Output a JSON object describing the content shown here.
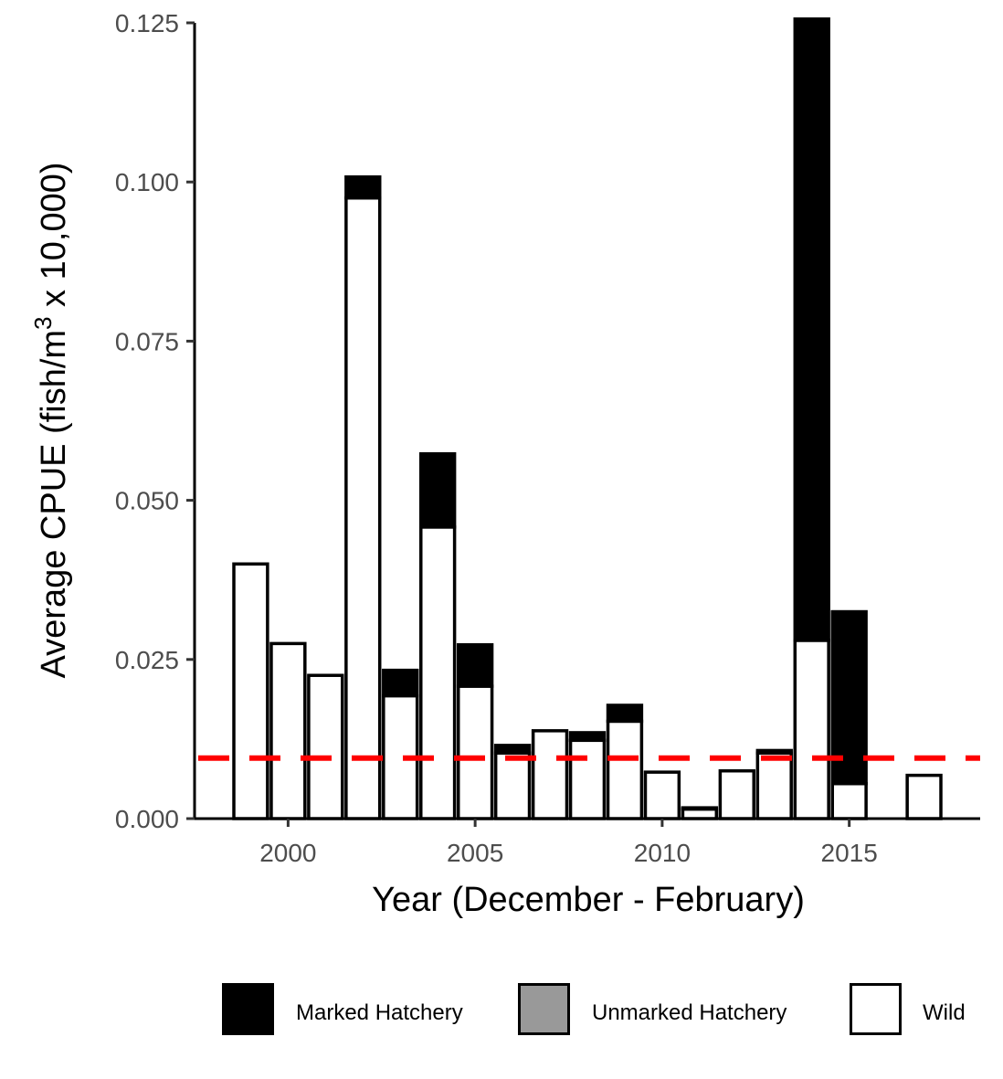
{
  "chart_data": {
    "type": "bar",
    "stacked": true,
    "xlabel": "Year (December - February)",
    "ylabel": {
      "prefix": "Average CPUE (fish/m",
      "superscript": "3",
      "suffix": " x 10,000)"
    },
    "xlim": [
      1997.5,
      2018.5
    ],
    "ylim": [
      0,
      0.125
    ],
    "x_ticks": [
      2000,
      2005,
      2010,
      2015
    ],
    "x_tick_labels": [
      "2000",
      "2005",
      "2010",
      "2015"
    ],
    "y_ticks": [
      0,
      0.025,
      0.05,
      0.075,
      0.1,
      0.125
    ],
    "y_tick_labels": [
      "0.000",
      "0.025",
      "0.050",
      "0.075",
      "0.100",
      "0.125"
    ],
    "grid": false,
    "reference_line": {
      "y": 0.0095,
      "style": "dashed",
      "color": "#ff0000"
    },
    "legend": {
      "position": "bottom"
    },
    "series": [
      {
        "name": "Wild",
        "color": "#ffffff",
        "values": [
          {
            "x": 1999,
            "y": 0.04
          },
          {
            "x": 2000,
            "y": 0.0275
          },
          {
            "x": 2001,
            "y": 0.0225
          },
          {
            "x": 2002,
            "y": 0.0975
          },
          {
            "x": 2003,
            "y": 0.0193
          },
          {
            "x": 2004,
            "y": 0.0458
          },
          {
            "x": 2005,
            "y": 0.0208
          },
          {
            "x": 2006,
            "y": 0.0103
          },
          {
            "x": 2007,
            "y": 0.0138
          },
          {
            "x": 2008,
            "y": 0.0123
          },
          {
            "x": 2009,
            "y": 0.0153
          },
          {
            "x": 2010,
            "y": 0.0073
          },
          {
            "x": 2011,
            "y": 0.0015
          },
          {
            "x": 2012,
            "y": 0.0075
          },
          {
            "x": 2013,
            "y": 0.0103
          },
          {
            "x": 2014,
            "y": 0.028
          },
          {
            "x": 2015,
            "y": 0.0055
          },
          {
            "x": 2017,
            "y": 0.0068
          }
        ]
      },
      {
        "name": "Unmarked Hatchery",
        "color": "#999999",
        "values": []
      },
      {
        "name": "Marked Hatchery",
        "color": "#000000",
        "values": [
          {
            "x": 2002,
            "y": 0.0033
          },
          {
            "x": 2003,
            "y": 0.004
          },
          {
            "x": 2004,
            "y": 0.0115
          },
          {
            "x": 2005,
            "y": 0.0065
          },
          {
            "x": 2006,
            "y": 0.0012
          },
          {
            "x": 2008,
            "y": 0.0012
          },
          {
            "x": 2009,
            "y": 0.0025
          },
          {
            "x": 2011,
            "y": 0.0002
          },
          {
            "x": 2013,
            "y": 0.0004
          },
          {
            "x": 2014,
            "y": 0.0985
          },
          {
            "x": 2015,
            "y": 0.027
          }
        ]
      }
    ],
    "legend_order": [
      "Marked Hatchery",
      "Unmarked Hatchery",
      "Wild"
    ]
  }
}
